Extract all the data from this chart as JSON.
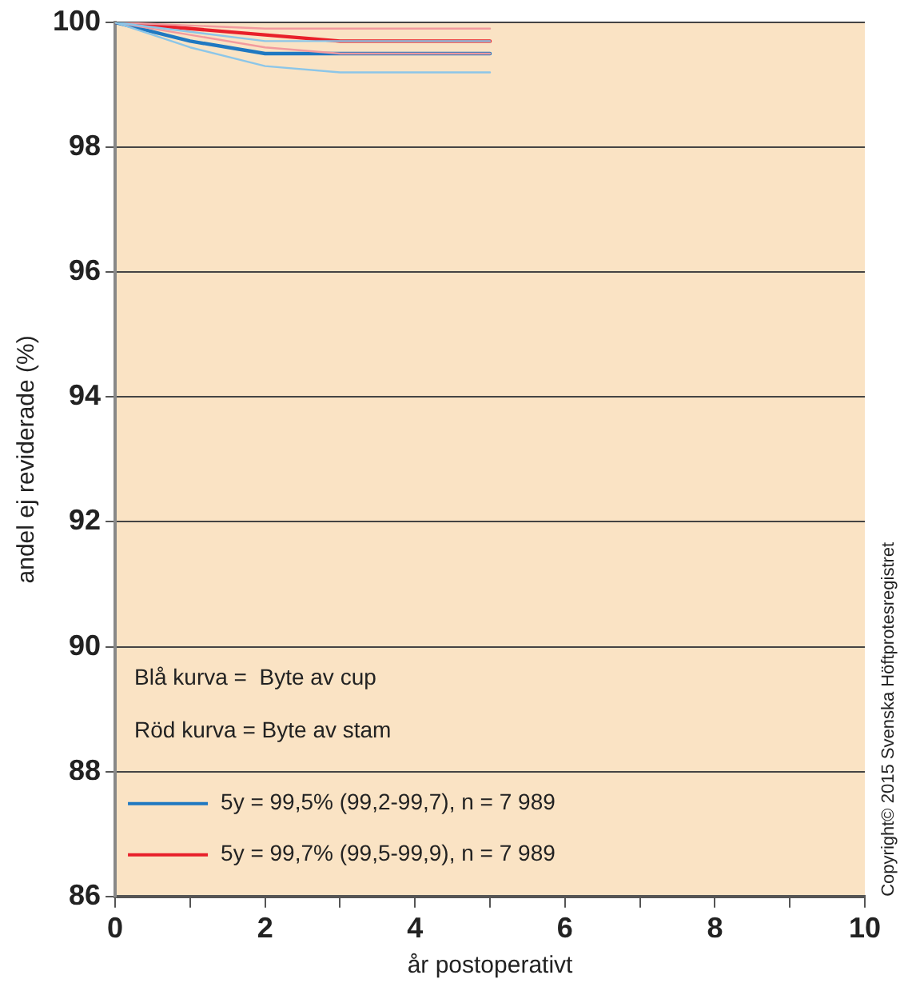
{
  "chart_data": {
    "type": "line",
    "xlabel": "år postoperativt",
    "ylabel": "andel ej reviderade (%)",
    "x": [
      0,
      1,
      2,
      3,
      4,
      5
    ],
    "series": [
      {
        "color": "#8cc6e8",
        "values": [
          100,
          99.6,
          99.3,
          99.2,
          99.2,
          99.2
        ]
      },
      {
        "color": "#8cc6e8",
        "values": [
          100,
          99.85,
          99.7,
          99.7,
          99.7,
          99.7
        ]
      },
      {
        "color": "#f29a9e",
        "values": [
          100,
          99.8,
          99.6,
          99.5,
          99.5,
          99.5
        ]
      },
      {
        "color": "#f29a9e",
        "values": [
          100,
          99.95,
          99.9,
          99.9,
          99.9,
          99.9
        ]
      },
      {
        "name": "5y = 99,5% (99,2-99,7), n = 7 989",
        "color": "#1f78c1",
        "values": [
          100,
          99.7,
          99.5,
          99.5,
          99.5,
          99.5
        ]
      },
      {
        "name": "5y = 99,7% (99,5-99,9), n = 7 989",
        "color": "#e8202a",
        "values": [
          100,
          99.9,
          99.8,
          99.7,
          99.7,
          99.7
        ]
      }
    ],
    "xlim": [
      0,
      10
    ],
    "xticks": [
      0,
      {
        "value": 1,
        "label": null
      },
      2,
      {
        "value": 3,
        "label": null
      },
      4,
      {
        "value": 5,
        "label": null
      },
      6,
      {
        "value": 7,
        "label": null
      },
      8,
      {
        "value": 9,
        "label": null
      },
      10
    ],
    "ylim": [
      86,
      100
    ],
    "yticks": [
      86,
      88,
      90,
      92,
      94,
      96,
      98,
      100
    ],
    "grid": "y",
    "legend": "bottom left",
    "marker": "none",
    "line_style": "solid",
    "annotations": [
      "Blå kurva =  Byte av cup",
      "Röd kurva = Byte av stam",
      "Copyright© 2015 Svenska Höftprotesregistret"
    ]
  }
}
